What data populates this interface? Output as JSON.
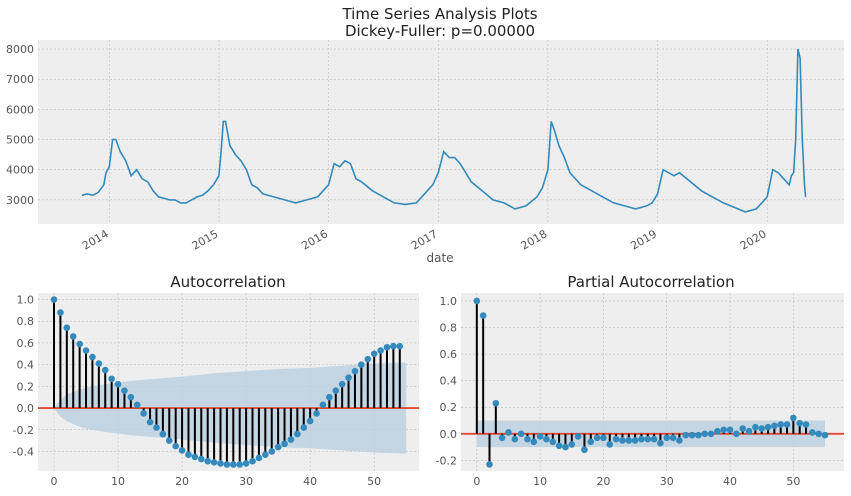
{
  "figure": {
    "title_line1": "Time Series Analysis Plots",
    "title_line2": "Dickey-Fuller: p=0.00000"
  },
  "colors": {
    "background": "#eeeeee",
    "grid": "#b2b2b2",
    "series": "#348abd",
    "zero_line": "#e24a33",
    "confidence_band": "#bcd0e0",
    "stem": "#000000"
  },
  "chart_data": [
    {
      "type": "line",
      "name": "time-series",
      "xlabel": "date",
      "ylabel": "",
      "x_tick_labels": [
        "2014",
        "2015",
        "2016",
        "2017",
        "2018",
        "2019",
        "2020"
      ],
      "y_ticks": [
        3000,
        4000,
        5000,
        6000,
        7000,
        8000
      ],
      "xlim": [
        2013.35,
        2020.7
      ],
      "ylim": [
        2200,
        8300
      ],
      "grid": true,
      "x": [
        2013.75,
        2013.8,
        2013.85,
        2013.9,
        2013.95,
        2013.97,
        2014.0,
        2014.03,
        2014.06,
        2014.1,
        2014.15,
        2014.2,
        2014.25,
        2014.3,
        2014.35,
        2014.4,
        2014.45,
        2014.5,
        2014.55,
        2014.6,
        2014.65,
        2014.7,
        2014.75,
        2014.8,
        2014.85,
        2014.9,
        2014.95,
        2015.0,
        2015.02,
        2015.04,
        2015.06,
        2015.1,
        2015.15,
        2015.2,
        2015.25,
        2015.3,
        2015.35,
        2015.4,
        2015.5,
        2015.6,
        2015.7,
        2015.8,
        2015.9,
        2015.95,
        2016.0,
        2016.05,
        2016.1,
        2016.15,
        2016.2,
        2016.25,
        2016.3,
        2016.4,
        2016.5,
        2016.6,
        2016.7,
        2016.8,
        2016.9,
        2016.95,
        2017.0,
        2017.05,
        2017.1,
        2017.15,
        2017.2,
        2017.25,
        2017.3,
        2017.4,
        2017.5,
        2017.6,
        2017.7,
        2017.8,
        2017.9,
        2017.95,
        2018.0,
        2018.03,
        2018.06,
        2018.1,
        2018.15,
        2018.2,
        2018.3,
        2018.4,
        2018.5,
        2018.6,
        2018.7,
        2018.8,
        2018.9,
        2018.95,
        2019.0,
        2019.05,
        2019.1,
        2019.15,
        2019.2,
        2019.3,
        2019.4,
        2019.5,
        2019.6,
        2019.7,
        2019.8,
        2019.9,
        2019.95,
        2020.0,
        2020.05,
        2020.1,
        2020.15,
        2020.2,
        2020.22,
        2020.24,
        2020.26,
        2020.28,
        2020.3,
        2020.32,
        2020.34,
        2020.35
      ],
      "y": [
        3150,
        3200,
        3150,
        3250,
        3500,
        3900,
        4100,
        5000,
        5000,
        4600,
        4300,
        3800,
        4000,
        3700,
        3600,
        3300,
        3100,
        3050,
        3000,
        3000,
        2900,
        2900,
        3000,
        3100,
        3150,
        3300,
        3500,
        3800,
        4600,
        5600,
        5600,
        4800,
        4500,
        4300,
        4000,
        3500,
        3400,
        3200,
        3100,
        3000,
        2900,
        3000,
        3100,
        3300,
        3500,
        4200,
        4100,
        4300,
        4200,
        3700,
        3600,
        3300,
        3100,
        2900,
        2850,
        2900,
        3300,
        3500,
        3900,
        4600,
        4400,
        4400,
        4200,
        3900,
        3600,
        3300,
        3000,
        2900,
        2700,
        2800,
        3100,
        3400,
        4000,
        5600,
        5300,
        4800,
        4400,
        3900,
        3500,
        3300,
        3100,
        2900,
        2800,
        2700,
        2800,
        2900,
        3200,
        4000,
        3900,
        3800,
        3900,
        3600,
        3300,
        3100,
        2900,
        2750,
        2600,
        2700,
        2900,
        3100,
        4000,
        3900,
        3700,
        3500,
        3800,
        3900,
        5000,
        8000,
        7700,
        5000,
        3500,
        3100
      ]
    },
    {
      "type": "stem",
      "title": "Autocorrelation",
      "x_ticks": [
        0,
        10,
        20,
        30,
        40,
        50
      ],
      "y_ticks": [
        -0.4,
        -0.2,
        0.0,
        0.2,
        0.4,
        0.6,
        0.8,
        1.0
      ],
      "xlim": [
        -2.5,
        57
      ],
      "ylim": [
        -0.58,
        1.06
      ],
      "grid": true,
      "lags": [
        0,
        1,
        2,
        3,
        4,
        5,
        6,
        7,
        8,
        9,
        10,
        11,
        12,
        13,
        14,
        15,
        16,
        17,
        18,
        19,
        20,
        21,
        22,
        23,
        24,
        25,
        26,
        27,
        28,
        29,
        30,
        31,
        32,
        33,
        34,
        35,
        36,
        37,
        38,
        39,
        40,
        41,
        42,
        43,
        44,
        45,
        46,
        47,
        48,
        49,
        50,
        51,
        52,
        53,
        54
      ],
      "values": [
        1.0,
        0.88,
        0.74,
        0.66,
        0.59,
        0.53,
        0.47,
        0.41,
        0.35,
        0.27,
        0.22,
        0.16,
        0.1,
        0.03,
        -0.05,
        -0.13,
        -0.18,
        -0.24,
        -0.3,
        -0.35,
        -0.39,
        -0.43,
        -0.45,
        -0.47,
        -0.49,
        -0.5,
        -0.51,
        -0.52,
        -0.52,
        -0.52,
        -0.51,
        -0.49,
        -0.46,
        -0.43,
        -0.4,
        -0.36,
        -0.33,
        -0.29,
        -0.24,
        -0.18,
        -0.12,
        -0.05,
        0.03,
        0.1,
        0.16,
        0.22,
        0.28,
        0.34,
        0.4,
        0.45,
        0.5,
        0.53,
        0.56,
        0.57,
        0.57
      ],
      "confidence_band_x": [
        0,
        1,
        2,
        3,
        4,
        5,
        8,
        12,
        16,
        20,
        25,
        30,
        35,
        40,
        45,
        50,
        55
      ],
      "confidence_band": [
        0.0,
        0.08,
        0.12,
        0.15,
        0.17,
        0.19,
        0.22,
        0.25,
        0.27,
        0.29,
        0.32,
        0.34,
        0.36,
        0.37,
        0.39,
        0.41,
        0.42
      ]
    },
    {
      "type": "stem",
      "title": "Partial Autocorrelation",
      "x_ticks": [
        0,
        10,
        20,
        30,
        40,
        50
      ],
      "y_ticks": [
        -0.2,
        0.0,
        0.2,
        0.4,
        0.6,
        0.8,
        1.0
      ],
      "xlim": [
        -2.5,
        58
      ],
      "ylim": [
        -0.28,
        1.06
      ],
      "grid": true,
      "lags": [
        0,
        1,
        2,
        3,
        4,
        5,
        6,
        7,
        8,
        9,
        10,
        11,
        12,
        13,
        14,
        15,
        16,
        17,
        18,
        19,
        20,
        21,
        22,
        23,
        24,
        25,
        26,
        27,
        28,
        29,
        30,
        31,
        32,
        33,
        34,
        35,
        36,
        37,
        38,
        39,
        40,
        41,
        42,
        43,
        44,
        45,
        46,
        47,
        48,
        49,
        50,
        51,
        52,
        53,
        54,
        55
      ],
      "values": [
        1.0,
        0.89,
        -0.23,
        0.23,
        -0.03,
        0.01,
        -0.04,
        0.0,
        -0.04,
        -0.06,
        -0.02,
        -0.04,
        -0.06,
        -0.09,
        -0.1,
        -0.08,
        -0.02,
        -0.12,
        -0.06,
        -0.03,
        -0.03,
        -0.08,
        -0.04,
        -0.05,
        -0.05,
        -0.05,
        -0.04,
        -0.04,
        -0.04,
        -0.07,
        -0.03,
        -0.03,
        -0.05,
        -0.01,
        -0.01,
        -0.01,
        0.0,
        0.0,
        0.02,
        0.03,
        0.03,
        0.0,
        0.04,
        0.02,
        0.05,
        0.04,
        0.05,
        0.06,
        0.07,
        0.07,
        0.12,
        0.08,
        0.07,
        0.01,
        0.0,
        -0.01
      ],
      "confidence_band_x": [
        0,
        55
      ],
      "confidence_band": [
        0.1,
        0.1
      ]
    }
  ]
}
